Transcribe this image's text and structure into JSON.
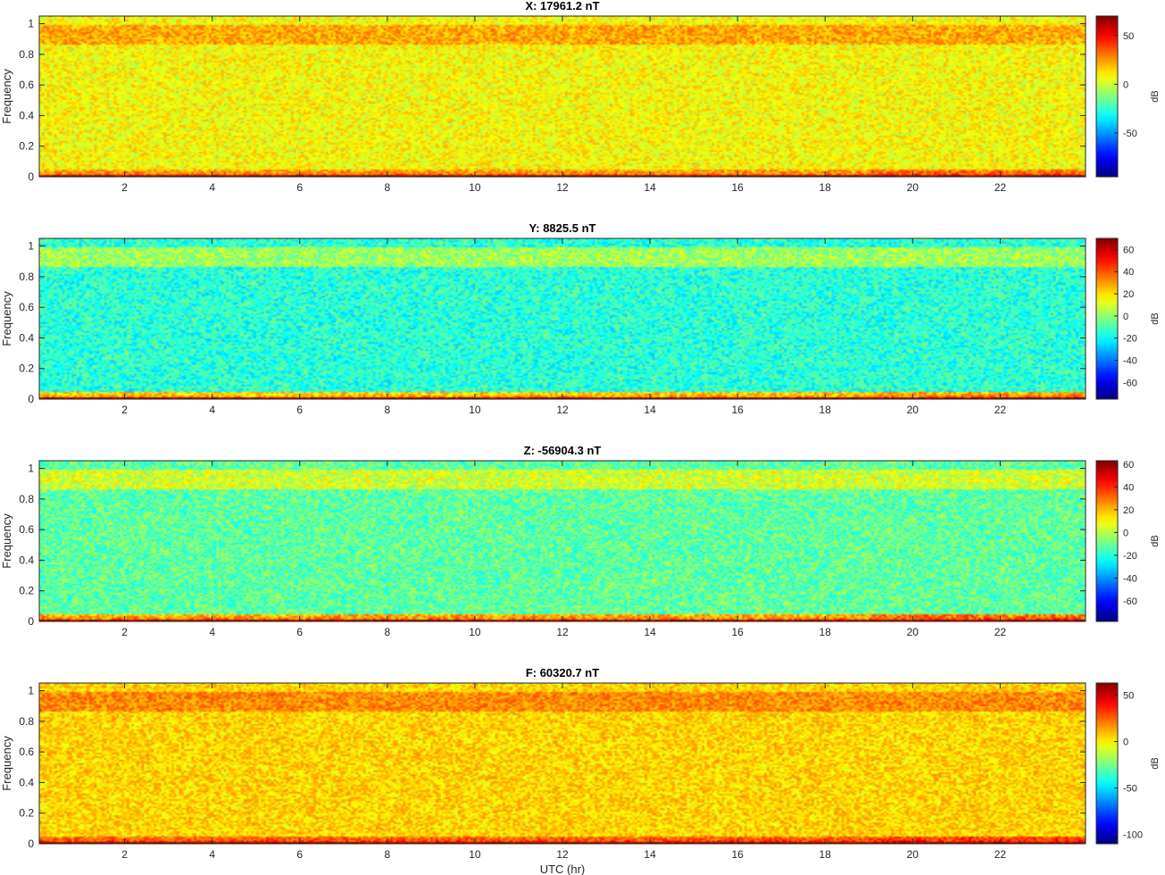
{
  "figure": {
    "xlabel": "UTC (hr)"
  },
  "chart_data": [
    {
      "type": "heatmap",
      "title": "X: 17961.2 nT",
      "xlabel": "",
      "ylabel": "Frequency",
      "colorbar_label": "dB",
      "colormap": "jet",
      "xlim": [
        0.05,
        23.95
      ],
      "ylim": [
        0,
        1.05
      ],
      "xticks": [
        2,
        4,
        6,
        8,
        10,
        12,
        14,
        16,
        18,
        20,
        22
      ],
      "yticks": [
        0,
        0.2,
        0.4,
        0.6,
        0.8,
        1
      ],
      "clim": [
        -95,
        70
      ],
      "cticks": [
        50,
        0,
        -50
      ],
      "levels_db": {
        "dc": 65,
        "low_band": 30,
        "mid_band": 8,
        "high_band": 22
      }
    },
    {
      "type": "heatmap",
      "title": "Y: 8825.5 nT",
      "xlabel": "",
      "ylabel": "Frequency",
      "colorbar_label": "dB",
      "colormap": "jet",
      "xlim": [
        0.05,
        23.95
      ],
      "ylim": [
        0,
        1.05
      ],
      "xticks": [
        2,
        4,
        6,
        8,
        10,
        12,
        14,
        16,
        18,
        20,
        22
      ],
      "yticks": [
        0,
        0.2,
        0.4,
        0.6,
        0.8,
        1
      ],
      "clim": [
        -75,
        70
      ],
      "cticks": [
        60,
        40,
        20,
        0,
        -20,
        -40,
        -60
      ],
      "levels_db": {
        "dc": 65,
        "low_band": 28,
        "mid_band": -15,
        "high_band": 2
      }
    },
    {
      "type": "heatmap",
      "title": "Z: -56904.3 nT",
      "xlabel": "",
      "ylabel": "Frequency",
      "colorbar_label": "dB",
      "colormap": "jet",
      "xlim": [
        0.05,
        23.95
      ],
      "ylim": [
        0,
        1.05
      ],
      "xticks": [
        2,
        4,
        6,
        8,
        10,
        12,
        14,
        16,
        18,
        20,
        22
      ],
      "yticks": [
        0,
        0.2,
        0.4,
        0.6,
        0.8,
        1
      ],
      "clim": [
        -78,
        63
      ],
      "cticks": [
        60,
        40,
        20,
        0,
        -20,
        -40,
        -60
      ],
      "levels_db": {
        "dc": 58,
        "low_band": 28,
        "mid_band": -12,
        "high_band": 4
      }
    },
    {
      "type": "heatmap",
      "title": "F: 60320.7 nT",
      "xlabel": "UTC (hr)",
      "ylabel": "Frequency",
      "colorbar_label": "dB",
      "colormap": "jet",
      "xlim": [
        0.05,
        23.95
      ],
      "ylim": [
        0,
        1.05
      ],
      "xticks": [
        2,
        4,
        6,
        8,
        10,
        12,
        14,
        16,
        18,
        20,
        22
      ],
      "yticks": [
        0,
        0.2,
        0.4,
        0.6,
        0.8,
        1
      ],
      "clim": [
        -110,
        63
      ],
      "cticks": [
        50,
        0,
        -50,
        -100
      ],
      "levels_db": {
        "dc": 58,
        "low_band": 30,
        "mid_band": 5,
        "high_band": 18
      }
    }
  ]
}
